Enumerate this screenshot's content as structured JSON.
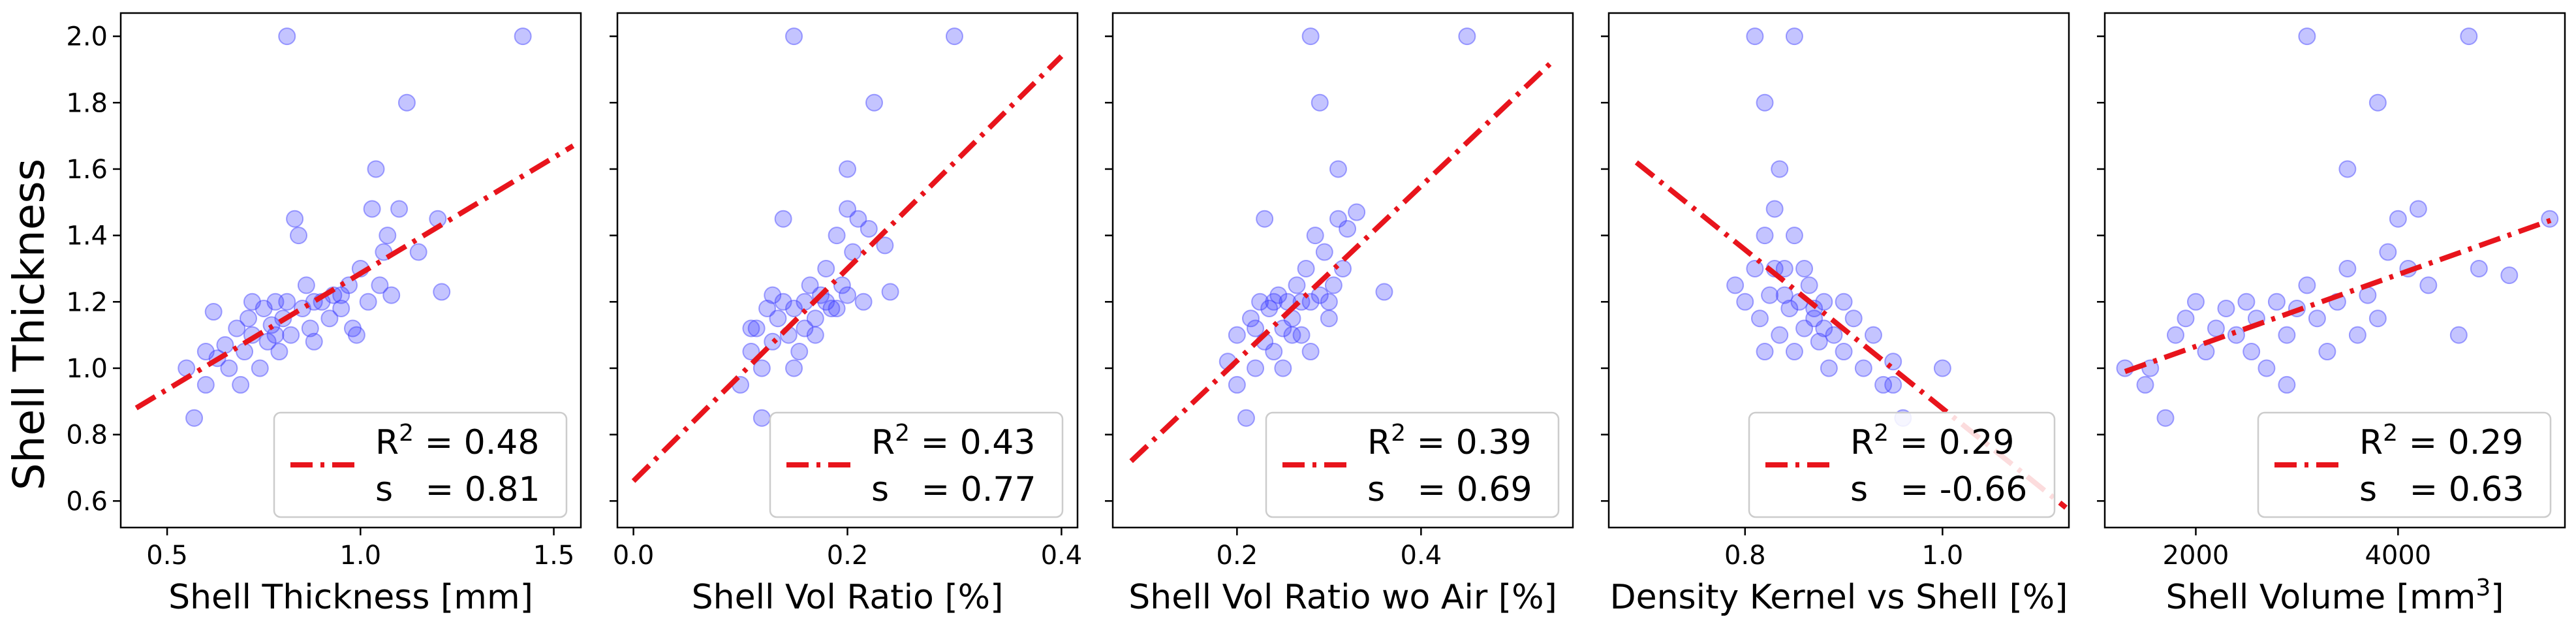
{
  "figure": {
    "ylabel": "Shell Thickness"
  },
  "chart_data": [
    {
      "type": "scatter",
      "xlabel_text": "Shell Thickness [mm]",
      "xlabel_sup": "",
      "xlabel_tail": "",
      "xlim": [
        0.38,
        1.57
      ],
      "ylim": [
        0.52,
        2.07
      ],
      "xticks": [
        0.5,
        1.0,
        1.5
      ],
      "xtick_labels": [
        "0.5",
        "1.0",
        "1.5"
      ],
      "yticks": [
        0.6,
        0.8,
        1.0,
        1.2,
        1.4,
        1.6,
        1.8,
        2.0
      ],
      "ytick_labels": [
        "0.6",
        "0.8",
        "1.0",
        "1.2",
        "1.4",
        "1.6",
        "1.8",
        "2.0"
      ],
      "fit_line": {
        "x": [
          0.42,
          1.55
        ],
        "y": [
          0.88,
          1.67
        ]
      },
      "legend": {
        "r2_label": "R",
        "r2_sup": "2",
        "r2_value": " = 0.48",
        "s_label": "s   = 0.81"
      },
      "points": [
        [
          0.55,
          1.0
        ],
        [
          0.57,
          0.85
        ],
        [
          0.6,
          0.95
        ],
        [
          0.62,
          1.17
        ],
        [
          0.63,
          1.03
        ],
        [
          0.65,
          1.07
        ],
        [
          0.66,
          1.0
        ],
        [
          0.68,
          1.12
        ],
        [
          0.7,
          1.05
        ],
        [
          0.71,
          1.15
        ],
        [
          0.72,
          1.1
        ],
        [
          0.74,
          1.0
        ],
        [
          0.75,
          1.18
        ],
        [
          0.76,
          1.08
        ],
        [
          0.77,
          1.13
        ],
        [
          0.78,
          1.2
        ],
        [
          0.79,
          1.05
        ],
        [
          0.8,
          1.15
        ],
        [
          0.81,
          1.2
        ],
        [
          0.82,
          1.1
        ],
        [
          0.83,
          1.45
        ],
        [
          0.84,
          1.4
        ],
        [
          0.85,
          1.18
        ],
        [
          0.86,
          1.25
        ],
        [
          0.87,
          1.12
        ],
        [
          0.88,
          1.08
        ],
        [
          0.9,
          1.2
        ],
        [
          0.92,
          1.15
        ],
        [
          0.93,
          1.22
        ],
        [
          0.95,
          1.18
        ],
        [
          0.97,
          1.25
        ],
        [
          0.98,
          1.12
        ],
        [
          1.0,
          1.3
        ],
        [
          1.02,
          1.2
        ],
        [
          1.03,
          1.48
        ],
        [
          1.04,
          1.6
        ],
        [
          1.05,
          1.25
        ],
        [
          1.06,
          1.35
        ],
        [
          1.07,
          1.4
        ],
        [
          1.08,
          1.22
        ],
        [
          1.1,
          1.48
        ],
        [
          1.12,
          1.8
        ],
        [
          1.15,
          1.35
        ],
        [
          1.2,
          1.45
        ],
        [
          1.21,
          1.23
        ],
        [
          0.81,
          2.0
        ],
        [
          1.42,
          2.0
        ],
        [
          0.69,
          0.95
        ],
        [
          0.72,
          1.2
        ],
        [
          0.88,
          1.2
        ],
        [
          0.95,
          1.22
        ],
        [
          0.99,
          1.1
        ],
        [
          0.6,
          1.05
        ],
        [
          0.78,
          1.1
        ]
      ]
    },
    {
      "type": "scatter",
      "xlabel_text": "Shell Vol Ratio [%]",
      "xlabel_sup": "",
      "xlabel_tail": "",
      "xlim": [
        -0.015,
        0.415
      ],
      "ylim": [
        0.52,
        2.07
      ],
      "xticks": [
        0.0,
        0.2,
        0.4
      ],
      "xtick_labels": [
        "0.0",
        "0.2",
        "0.4"
      ],
      "yticks": [
        0.6,
        0.8,
        1.0,
        1.2,
        1.4,
        1.6,
        1.8,
        2.0
      ],
      "ytick_labels": [],
      "fit_line": {
        "x": [
          0.0,
          0.4
        ],
        "y": [
          0.66,
          1.94
        ]
      },
      "legend": {
        "r2_label": "R",
        "r2_sup": "2",
        "r2_value": " = 0.43",
        "s_label": "s   = 0.77"
      },
      "points": [
        [
          0.1,
          0.95
        ],
        [
          0.11,
          1.05
        ],
        [
          0.115,
          1.12
        ],
        [
          0.12,
          1.0
        ],
        [
          0.125,
          1.18
        ],
        [
          0.13,
          1.08
        ],
        [
          0.135,
          1.15
        ],
        [
          0.14,
          1.2
        ],
        [
          0.145,
          1.1
        ],
        [
          0.15,
          1.18
        ],
        [
          0.155,
          1.05
        ],
        [
          0.16,
          1.2
        ],
        [
          0.165,
          1.25
        ],
        [
          0.17,
          1.15
        ],
        [
          0.175,
          1.22
        ],
        [
          0.18,
          1.3
        ],
        [
          0.185,
          1.18
        ],
        [
          0.19,
          1.4
        ],
        [
          0.195,
          1.25
        ],
        [
          0.2,
          1.48
        ],
        [
          0.205,
          1.35
        ],
        [
          0.21,
          1.45
        ],
        [
          0.215,
          1.2
        ],
        [
          0.22,
          1.42
        ],
        [
          0.235,
          1.37
        ],
        [
          0.24,
          1.23
        ],
        [
          0.14,
          1.45
        ],
        [
          0.2,
          1.6
        ],
        [
          0.225,
          1.8
        ],
        [
          0.15,
          2.0
        ],
        [
          0.3,
          2.0
        ],
        [
          0.12,
          0.85
        ],
        [
          0.13,
          1.22
        ],
        [
          0.16,
          1.12
        ],
        [
          0.18,
          1.2
        ],
        [
          0.19,
          1.18
        ],
        [
          0.2,
          1.22
        ],
        [
          0.11,
          1.12
        ],
        [
          0.17,
          1.1
        ],
        [
          0.15,
          1.0
        ]
      ]
    },
    {
      "type": "scatter",
      "xlabel_text": "Shell Vol Ratio wo Air [%]",
      "xlabel_sup": "",
      "xlabel_tail": "",
      "xlim": [
        0.065,
        0.565
      ],
      "ylim": [
        0.52,
        2.07
      ],
      "xticks": [
        0.2,
        0.4
      ],
      "xtick_labels": [
        "0.2",
        "0.4"
      ],
      "yticks": [
        0.6,
        0.8,
        1.0,
        1.2,
        1.4,
        1.6,
        1.8,
        2.0
      ],
      "ytick_labels": [],
      "fit_line": {
        "x": [
          0.085,
          0.545
        ],
        "y": [
          0.72,
          1.93
        ]
      },
      "legend": {
        "r2_label": "R",
        "r2_sup": "2",
        "r2_value": " = 0.39",
        "s_label": "s   = 0.69"
      },
      "points": [
        [
          0.19,
          1.02
        ],
        [
          0.2,
          1.1
        ],
        [
          0.21,
          0.85
        ],
        [
          0.215,
          1.15
        ],
        [
          0.22,
          1.0
        ],
        [
          0.225,
          1.2
        ],
        [
          0.23,
          1.08
        ],
        [
          0.235,
          1.18
        ],
        [
          0.24,
          1.05
        ],
        [
          0.245,
          1.22
        ],
        [
          0.25,
          1.12
        ],
        [
          0.255,
          1.2
        ],
        [
          0.26,
          1.15
        ],
        [
          0.265,
          1.25
        ],
        [
          0.27,
          1.1
        ],
        [
          0.275,
          1.3
        ],
        [
          0.28,
          1.2
        ],
        [
          0.285,
          1.4
        ],
        [
          0.29,
          1.22
        ],
        [
          0.295,
          1.35
        ],
        [
          0.3,
          1.15
        ],
        [
          0.305,
          1.25
        ],
        [
          0.31,
          1.45
        ],
        [
          0.315,
          1.3
        ],
        [
          0.32,
          1.42
        ],
        [
          0.36,
          1.23
        ],
        [
          0.23,
          1.45
        ],
        [
          0.31,
          1.6
        ],
        [
          0.29,
          1.8
        ],
        [
          0.28,
          2.0
        ],
        [
          0.45,
          2.0
        ],
        [
          0.2,
          0.95
        ],
        [
          0.24,
          1.2
        ],
        [
          0.26,
          1.1
        ],
        [
          0.27,
          1.2
        ],
        [
          0.25,
          1.0
        ],
        [
          0.22,
          1.12
        ],
        [
          0.3,
          1.2
        ],
        [
          0.28,
          1.05
        ],
        [
          0.33,
          1.47
        ]
      ]
    },
    {
      "type": "scatter",
      "xlabel_text": "Density Kernel vs Shell [%]",
      "xlabel_sup": "",
      "xlabel_tail": "",
      "xlim": [
        0.662,
        1.128
      ],
      "ylim": [
        0.52,
        2.07
      ],
      "xticks": [
        0.8,
        1.0
      ],
      "xtick_labels": [
        "0.8",
        "1.0"
      ],
      "yticks": [
        0.6,
        0.8,
        1.0,
        1.2,
        1.4,
        1.6,
        1.8,
        2.0
      ],
      "ytick_labels": [],
      "fit_line": {
        "x": [
          0.69,
          1.125
        ],
        "y": [
          1.62,
          0.58
        ]
      },
      "legend": {
        "r2_label": "R",
        "r2_sup": "2",
        "r2_value": " = 0.29",
        "s_label": "s   = -0.66"
      },
      "points": [
        [
          0.81,
          2.0
        ],
        [
          0.82,
          1.8
        ],
        [
          0.85,
          2.0
        ],
        [
          0.835,
          1.6
        ],
        [
          0.79,
          1.25
        ],
        [
          0.8,
          1.2
        ],
        [
          0.81,
          1.3
        ],
        [
          0.815,
          1.15
        ],
        [
          0.82,
          1.4
        ],
        [
          0.825,
          1.22
        ],
        [
          0.83,
          1.48
        ],
        [
          0.835,
          1.1
        ],
        [
          0.84,
          1.3
        ],
        [
          0.845,
          1.18
        ],
        [
          0.85,
          1.05
        ],
        [
          0.855,
          1.2
        ],
        [
          0.86,
          1.12
        ],
        [
          0.865,
          1.25
        ],
        [
          0.87,
          1.15
        ],
        [
          0.875,
          1.08
        ],
        [
          0.88,
          1.2
        ],
        [
          0.885,
          1.0
        ],
        [
          0.89,
          1.1
        ],
        [
          0.9,
          1.05
        ],
        [
          0.91,
          1.15
        ],
        [
          0.92,
          1.0
        ],
        [
          0.93,
          1.1
        ],
        [
          0.94,
          0.95
        ],
        [
          0.95,
          1.02
        ],
        [
          0.96,
          0.85
        ],
        [
          1.0,
          1.0
        ],
        [
          0.82,
          1.05
        ],
        [
          0.84,
          1.22
        ],
        [
          0.86,
          1.3
        ],
        [
          0.87,
          1.18
        ],
        [
          0.85,
          1.4
        ],
        [
          0.83,
          1.3
        ],
        [
          0.88,
          1.12
        ],
        [
          0.9,
          1.2
        ],
        [
          0.95,
          0.95
        ]
      ]
    },
    {
      "type": "scatter",
      "xlabel_text": "Shell Volume [mm",
      "xlabel_sup": "3",
      "xlabel_tail": "]",
      "xlim": [
        1100,
        5650
      ],
      "ylim": [
        0.52,
        2.07
      ],
      "xticks": [
        2000,
        4000
      ],
      "xtick_labels": [
        "2000",
        "4000"
      ],
      "yticks": [
        0.6,
        0.8,
        1.0,
        1.2,
        1.4,
        1.6,
        1.8,
        2.0
      ],
      "ytick_labels": [],
      "fit_line": {
        "x": [
          1300,
          5550
        ],
        "y": [
          0.99,
          1.45
        ]
      },
      "legend": {
        "r2_label": "R",
        "r2_sup": "2",
        "r2_value": " = 0.29",
        "s_label": "s   = 0.63"
      },
      "points": [
        [
          1300,
          1.0
        ],
        [
          1500,
          0.95
        ],
        [
          1550,
          1.0
        ],
        [
          1700,
          0.85
        ],
        [
          1800,
          1.1
        ],
        [
          1900,
          1.15
        ],
        [
          2000,
          1.2
        ],
        [
          2100,
          1.05
        ],
        [
          2200,
          1.12
        ],
        [
          2300,
          1.18
        ],
        [
          2400,
          1.1
        ],
        [
          2500,
          1.2
        ],
        [
          2550,
          1.05
        ],
        [
          2600,
          1.15
        ],
        [
          2700,
          1.0
        ],
        [
          2800,
          1.2
        ],
        [
          2900,
          1.1
        ],
        [
          3000,
          1.18
        ],
        [
          3100,
          1.25
        ],
        [
          3200,
          1.15
        ],
        [
          3300,
          1.05
        ],
        [
          3400,
          1.2
        ],
        [
          3500,
          1.3
        ],
        [
          3600,
          1.1
        ],
        [
          3700,
          1.22
        ],
        [
          3800,
          1.15
        ],
        [
          3900,
          1.35
        ],
        [
          4000,
          1.45
        ],
        [
          4100,
          1.3
        ],
        [
          4200,
          1.48
        ],
        [
          4300,
          1.25
        ],
        [
          4600,
          1.1
        ],
        [
          4800,
          1.3
        ],
        [
          5100,
          1.28
        ],
        [
          5500,
          1.45
        ],
        [
          3500,
          1.6
        ],
        [
          3800,
          1.8
        ],
        [
          3100,
          2.0
        ],
        [
          4700,
          2.0
        ],
        [
          2900,
          0.95
        ]
      ]
    }
  ]
}
